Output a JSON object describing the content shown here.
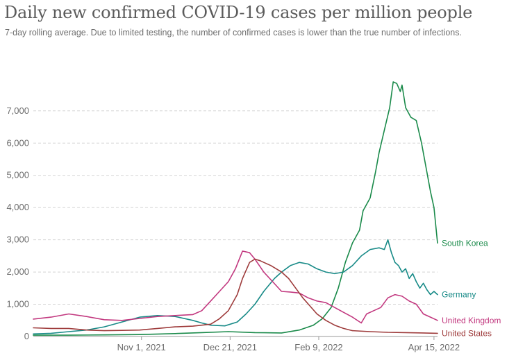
{
  "title": "Daily new confirmed COVID-19 cases per million people",
  "subtitle": "7-day rolling average. Due to limited testing, the number of confirmed cases is lower than the true number of infections.",
  "chart_data": {
    "type": "line",
    "title": "Daily new confirmed COVID-19 cases per million people",
    "subtitle": "7-day rolling average. Due to limited testing, the number of confirmed cases is lower than the true number of infections.",
    "xlabel": "",
    "ylabel": "",
    "x_unit": "days since Sep 1, 2021",
    "xlim": [
      0,
      228
    ],
    "ylim": [
      0,
      7900
    ],
    "grid": "horizontal dashed",
    "yticks": [
      {
        "value": 0,
        "label": "0"
      },
      {
        "value": 1000,
        "label": "1,000"
      },
      {
        "value": 2000,
        "label": "2,000"
      },
      {
        "value": 3000,
        "label": "3,000"
      },
      {
        "value": 4000,
        "label": "4,000"
      },
      {
        "value": 5000,
        "label": "5,000"
      },
      {
        "value": 6000,
        "label": "6,000"
      },
      {
        "value": 7000,
        "label": "7,000"
      }
    ],
    "xticks": [
      {
        "value": 61,
        "label": "Nov 1, 2021"
      },
      {
        "value": 111,
        "label": "Dec 21, 2021"
      },
      {
        "value": 161,
        "label": "Feb 9, 2022"
      },
      {
        "value": 226,
        "label": "Apr 15, 2022"
      }
    ],
    "series": [
      {
        "name": "South Korea",
        "color": "#1a8a4a",
        "points": [
          [
            0,
            40
          ],
          [
            20,
            40
          ],
          [
            40,
            50
          ],
          [
            60,
            60
          ],
          [
            80,
            90
          ],
          [
            95,
            120
          ],
          [
            110,
            150
          ],
          [
            125,
            120
          ],
          [
            140,
            110
          ],
          [
            150,
            200
          ],
          [
            158,
            350
          ],
          [
            163,
            550
          ],
          [
            168,
            900
          ],
          [
            172,
            1500
          ],
          [
            176,
            2300
          ],
          [
            180,
            2900
          ],
          [
            184,
            3300
          ],
          [
            186,
            3900
          ],
          [
            190,
            4300
          ],
          [
            193,
            5100
          ],
          [
            195,
            5700
          ],
          [
            198,
            6400
          ],
          [
            201,
            7100
          ],
          [
            203,
            7900
          ],
          [
            205,
            7850
          ],
          [
            207,
            7600
          ],
          [
            208,
            7800
          ],
          [
            210,
            7100
          ],
          [
            213,
            6800
          ],
          [
            216,
            6700
          ],
          [
            219,
            6000
          ],
          [
            222,
            5100
          ],
          [
            224,
            4500
          ],
          [
            226,
            4000
          ],
          [
            228,
            2900
          ]
        ]
      },
      {
        "name": "Germany",
        "color": "#178a87",
        "points": [
          [
            0,
            80
          ],
          [
            10,
            100
          ],
          [
            20,
            150
          ],
          [
            30,
            200
          ],
          [
            40,
            300
          ],
          [
            50,
            450
          ],
          [
            60,
            600
          ],
          [
            70,
            650
          ],
          [
            80,
            620
          ],
          [
            90,
            500
          ],
          [
            95,
            420
          ],
          [
            100,
            350
          ],
          [
            108,
            330
          ],
          [
            115,
            450
          ],
          [
            120,
            700
          ],
          [
            125,
            1000
          ],
          [
            130,
            1400
          ],
          [
            136,
            1800
          ],
          [
            140,
            2000
          ],
          [
            145,
            2200
          ],
          [
            150,
            2300
          ],
          [
            155,
            2250
          ],
          [
            160,
            2100
          ],
          [
            165,
            2000
          ],
          [
            170,
            1950
          ],
          [
            175,
            2000
          ],
          [
            180,
            2200
          ],
          [
            185,
            2500
          ],
          [
            190,
            2700
          ],
          [
            195,
            2750
          ],
          [
            198,
            2700
          ],
          [
            200,
            3000
          ],
          [
            202,
            2600
          ],
          [
            204,
            2300
          ],
          [
            206,
            2200
          ],
          [
            208,
            2000
          ],
          [
            210,
            2100
          ],
          [
            212,
            1800
          ],
          [
            214,
            1950
          ],
          [
            216,
            1700
          ],
          [
            218,
            1500
          ],
          [
            220,
            1650
          ],
          [
            222,
            1450
          ],
          [
            224,
            1300
          ],
          [
            226,
            1400
          ],
          [
            228,
            1300
          ]
        ]
      },
      {
        "name": "United Kingdom",
        "color": "#c2387f",
        "points": [
          [
            0,
            540
          ],
          [
            10,
            600
          ],
          [
            20,
            700
          ],
          [
            30,
            620
          ],
          [
            40,
            520
          ],
          [
            50,
            500
          ],
          [
            60,
            560
          ],
          [
            70,
            620
          ],
          [
            80,
            650
          ],
          [
            90,
            680
          ],
          [
            95,
            800
          ],
          [
            100,
            1100
          ],
          [
            105,
            1400
          ],
          [
            110,
            1700
          ],
          [
            114,
            2100
          ],
          [
            118,
            2650
          ],
          [
            122,
            2600
          ],
          [
            125,
            2400
          ],
          [
            130,
            2000
          ],
          [
            135,
            1700
          ],
          [
            140,
            1400
          ],
          [
            145,
            1380
          ],
          [
            150,
            1350
          ],
          [
            155,
            1200
          ],
          [
            160,
            1100
          ],
          [
            165,
            1050
          ],
          [
            170,
            900
          ],
          [
            175,
            750
          ],
          [
            180,
            600
          ],
          [
            185,
            420
          ],
          [
            188,
            700
          ],
          [
            192,
            800
          ],
          [
            196,
            900
          ],
          [
            200,
            1200
          ],
          [
            204,
            1300
          ],
          [
            208,
            1250
          ],
          [
            212,
            1100
          ],
          [
            216,
            1000
          ],
          [
            220,
            700
          ],
          [
            224,
            600
          ],
          [
            228,
            500
          ]
        ]
      },
      {
        "name": "United States",
        "color": "#9e3b3b",
        "points": [
          [
            0,
            270
          ],
          [
            10,
            250
          ],
          [
            20,
            250
          ],
          [
            30,
            200
          ],
          [
            40,
            180
          ],
          [
            50,
            190
          ],
          [
            60,
            200
          ],
          [
            70,
            250
          ],
          [
            80,
            300
          ],
          [
            90,
            320
          ],
          [
            100,
            380
          ],
          [
            105,
            550
          ],
          [
            110,
            800
          ],
          [
            115,
            1300
          ],
          [
            118,
            1800
          ],
          [
            122,
            2300
          ],
          [
            125,
            2400
          ],
          [
            128,
            2350
          ],
          [
            130,
            2300
          ],
          [
            134,
            2200
          ],
          [
            140,
            2000
          ],
          [
            144,
            1800
          ],
          [
            148,
            1500
          ],
          [
            152,
            1200
          ],
          [
            156,
            950
          ],
          [
            160,
            700
          ],
          [
            165,
            500
          ],
          [
            170,
            350
          ],
          [
            175,
            250
          ],
          [
            180,
            180
          ],
          [
            190,
            150
          ],
          [
            200,
            130
          ],
          [
            210,
            120
          ],
          [
            220,
            110
          ],
          [
            228,
            100
          ]
        ]
      }
    ]
  }
}
